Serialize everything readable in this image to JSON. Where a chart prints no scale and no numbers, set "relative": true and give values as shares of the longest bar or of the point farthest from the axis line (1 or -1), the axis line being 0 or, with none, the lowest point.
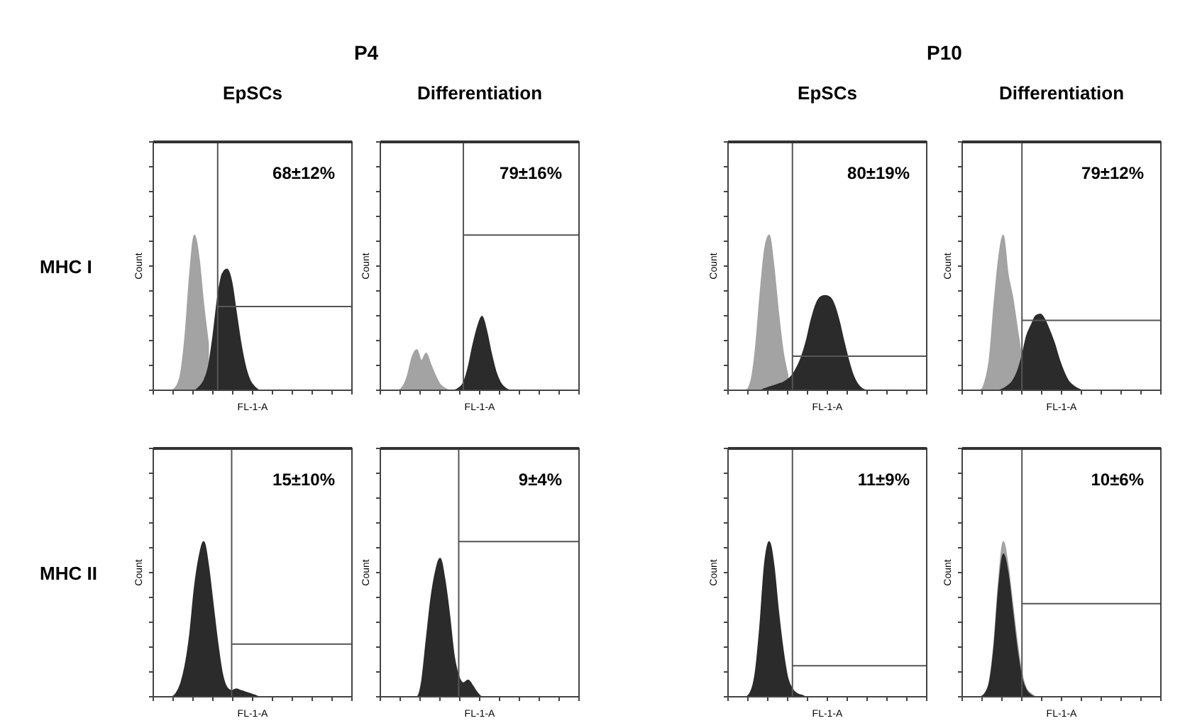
{
  "chart_data": [
    {
      "type": "area",
      "relative": true,
      "title": "EpSCs",
      "subtitle": "P4",
      "xlabel": "FL-1-A",
      "ylabel": "Count",
      "annotations": [
        "68±12%",
        "MHC I"
      ],
      "ref_lines": [
        {
          "axis": "y",
          "value": 0.54
        }
      ],
      "categories": [
        null,
        null,
        null,
        null,
        null,
        null,
        null,
        null,
        null,
        null,
        null,
        null,
        null,
        null,
        null,
        null,
        null,
        null,
        null,
        null,
        null,
        null,
        null,
        null,
        null,
        null,
        null,
        null,
        null,
        null,
        null,
        null,
        null,
        null,
        null,
        null,
        null,
        null,
        null,
        null
      ],
      "series": [
        {
          "color": "#a3a3a3",
          "values": [
            0,
            0,
            0,
            0.02,
            0.1,
            0.35,
            0.75,
            1,
            0.85,
            0.55,
            0.3,
            null,
            null,
            null,
            null,
            null,
            null,
            null,
            null,
            null,
            null,
            null,
            null,
            null,
            null,
            null,
            null,
            null,
            null,
            null,
            null,
            null,
            null,
            null,
            null,
            null,
            null,
            null,
            null,
            null
          ]
        },
        {
          "color": "#2b2b2b",
          "values": [
            0,
            0,
            0,
            0,
            0,
            0,
            0,
            0,
            0.02,
            0.06,
            0.15,
            0.35,
            0.6,
            0.75,
            0.78,
            0.7,
            0.5,
            0.3,
            0.15,
            0.06,
            0.02,
            0,
            0,
            0,
            0,
            0,
            0,
            0,
            0,
            0,
            0,
            0,
            0,
            0,
            0,
            0,
            0,
            0,
            0,
            0
          ]
        }
      ]
    },
    {
      "type": "area",
      "relative": true,
      "title": "Differentiation",
      "xlabel": "FL-1-A",
      "ylabel": "Count",
      "annotations": [
        "79±16%"
      ],
      "ref_lines": [
        {
          "axis": "y",
          "value": 2.1
        }
      ],
      "categories": [
        null,
        null,
        null,
        null,
        null,
        null,
        null,
        null,
        null,
        null,
        null,
        null,
        null,
        null,
        null,
        null,
        null,
        null,
        null,
        null,
        null,
        null,
        null,
        null,
        null,
        null,
        null,
        null,
        null,
        null,
        null,
        null,
        null,
        null,
        null,
        null,
        null,
        null,
        null,
        null
      ],
      "series": [
        {
          "color": "#a3a3a3",
          "values": [
            0,
            0,
            0,
            0.05,
            0.2,
            0.45,
            0.55,
            0.4,
            0.5,
            0.35,
            0.2,
            0.08,
            0.03,
            0,
            0,
            0,
            0,
            0,
            0,
            0,
            0,
            0,
            0,
            0,
            0,
            0,
            0,
            0,
            0,
            0,
            0,
            0,
            0,
            0,
            0,
            0,
            0,
            0,
            0,
            0
          ]
        },
        {
          "color": "#2b2b2b",
          "values": [
            0,
            0,
            0,
            0,
            0,
            0,
            0,
            0,
            0,
            0,
            0,
            0,
            0,
            0,
            0,
            0.03,
            0.1,
            0.3,
            0.6,
            0.85,
            1,
            0.8,
            0.5,
            0.25,
            0.1,
            0.03,
            0,
            0,
            0,
            0,
            0,
            0,
            0,
            0,
            0,
            0,
            0,
            0,
            0,
            0
          ]
        }
      ]
    },
    {
      "type": "area",
      "relative": true,
      "title": "EpSCs",
      "subtitle": "P10",
      "xlabel": "FL-1-A",
      "ylabel": "Count",
      "annotations": [
        "80±19%"
      ],
      "ref_lines": [
        {
          "axis": "y",
          "value": 0.22
        }
      ],
      "categories": [
        null,
        null,
        null,
        null,
        null,
        null,
        null,
        null,
        null,
        null,
        null,
        null,
        null,
        null,
        null,
        null,
        null,
        null,
        null,
        null,
        null,
        null,
        null,
        null,
        null,
        null,
        null,
        null,
        null,
        null,
        null,
        null,
        null,
        null,
        null,
        null,
        null,
        null,
        null,
        null
      ],
      "series": [
        {
          "color": "#a3a3a3",
          "values": [
            0,
            0,
            0,
            0.05,
            0.25,
            0.6,
            0.9,
            1,
            0.8,
            0.5,
            0.25,
            0.1,
            null,
            null,
            null,
            null,
            null,
            null,
            null,
            null,
            null,
            null,
            null,
            null,
            null,
            null,
            null,
            null,
            null,
            null,
            null,
            null,
            null,
            null,
            null,
            null,
            null,
            null,
            null,
            null
          ]
        },
        {
          "color": "#2b2b2b",
          "values": [
            0,
            0,
            0,
            0,
            0,
            0,
            0.01,
            0.02,
            0.03,
            0.04,
            0.05,
            0.07,
            0.1,
            0.15,
            0.22,
            0.32,
            0.45,
            0.55,
            0.6,
            0.61,
            0.6,
            0.55,
            0.45,
            0.32,
            0.2,
            0.1,
            0.04,
            0.01,
            0,
            0,
            0,
            0,
            0,
            0,
            0,
            0,
            0,
            0,
            0,
            0
          ]
        }
      ]
    },
    {
      "type": "area",
      "relative": true,
      "title": "Differentiation",
      "xlabel": "FL-1-A",
      "ylabel": "Count",
      "annotations": [
        "79±12%"
      ],
      "ref_lines": [
        {
          "axis": "y",
          "value": 0.45
        }
      ],
      "categories": [
        null,
        null,
        null,
        null,
        null,
        null,
        null,
        null,
        null,
        null,
        null,
        null,
        null,
        null,
        null,
        null,
        null,
        null,
        null,
        null,
        null,
        null,
        null,
        null,
        null,
        null,
        null,
        null,
        null,
        null,
        null,
        null,
        null,
        null,
        null,
        null,
        null,
        null,
        null,
        null
      ],
      "series": [
        {
          "color": "#a3a3a3",
          "values": [
            0,
            0,
            0,
            0.05,
            0.2,
            0.55,
            0.85,
            1,
            0.75,
            0.6,
            0.4,
            0.2,
            null,
            null,
            null,
            null,
            null,
            null,
            null,
            null,
            null,
            null,
            null,
            null,
            null,
            null,
            null,
            null,
            null,
            null,
            null,
            null,
            null,
            null,
            null,
            null,
            null,
            null,
            null,
            null
          ]
        },
        {
          "color": "#2b2b2b",
          "values": [
            0,
            0,
            0,
            0,
            0,
            0,
            0,
            0.01,
            0.03,
            0.06,
            0.12,
            0.22,
            0.35,
            0.42,
            0.48,
            0.49,
            0.45,
            0.38,
            0.3,
            0.2,
            0.12,
            0.06,
            0.03,
            0.01,
            0,
            0,
            0,
            0,
            0,
            0,
            0,
            0,
            0,
            0,
            0,
            0,
            0,
            0,
            0,
            0
          ]
        }
      ]
    },
    {
      "type": "area",
      "relative": true,
      "xlabel": "FL-1-A",
      "ylabel": "Count",
      "annotations": [
        "15±10%",
        "MHC II"
      ],
      "ref_lines": [
        {
          "axis": "y",
          "value": 0.34
        }
      ],
      "categories": [
        null,
        null,
        null,
        null,
        null,
        null,
        null,
        null,
        null,
        null,
        null,
        null,
        null,
        null,
        null,
        null,
        null,
        null,
        null,
        null,
        null,
        null,
        null,
        null,
        null,
        null,
        null,
        null,
        null,
        null,
        null,
        null,
        null,
        null,
        null,
        null,
        null,
        null,
        null,
        null
      ],
      "series": [
        {
          "color": "#2b2b2b",
          "values": [
            0,
            0,
            0,
            0.02,
            0.08,
            0.2,
            0.4,
            0.7,
            0.9,
            1,
            0.85,
            0.6,
            0.35,
            0.15,
            0.06,
            0.04,
            0.05,
            0.04,
            0.03,
            0.02,
            0.01,
            0,
            0,
            0,
            0,
            0,
            0,
            0,
            0,
            0,
            0,
            0,
            0,
            0,
            0,
            0,
            0,
            0,
            0,
            0
          ]
        }
      ]
    },
    {
      "type": "area",
      "relative": true,
      "xlabel": "FL-1-A",
      "ylabel": "Count",
      "annotations": [
        "9±4%"
      ],
      "ref_lines": [
        {
          "axis": "y",
          "value": 1.12
        }
      ],
      "categories": [
        null,
        null,
        null,
        null,
        null,
        null,
        null,
        null,
        null,
        null,
        null,
        null,
        null,
        null,
        null,
        null,
        null,
        null,
        null,
        null,
        null,
        null,
        null,
        null,
        null,
        null,
        null,
        null,
        null,
        null,
        null,
        null,
        null,
        null,
        null,
        null,
        null,
        null,
        null,
        null
      ],
      "series": [
        {
          "color": "#2b2b2b",
          "values": [
            0,
            0,
            0,
            0,
            0,
            0,
            0,
            0.1,
            0.4,
            0.7,
            0.9,
            1,
            0.85,
            0.6,
            0.3,
            0.15,
            0.1,
            0.12,
            0.08,
            0.03,
            0,
            0,
            0,
            0,
            0,
            0,
            0,
            0,
            0,
            0,
            0,
            0,
            0,
            0,
            0,
            0,
            0,
            0,
            0,
            0
          ]
        }
      ]
    },
    {
      "type": "area",
      "relative": true,
      "xlabel": "FL-1-A",
      "ylabel": "Count",
      "annotations": [
        "11±9%"
      ],
      "ref_lines": [
        {
          "axis": "y",
          "value": 0.2
        }
      ],
      "categories": [
        null,
        null,
        null,
        null,
        null,
        null,
        null,
        null,
        null,
        null,
        null,
        null,
        null,
        null,
        null,
        null,
        null,
        null,
        null,
        null,
        null,
        null,
        null,
        null,
        null,
        null,
        null,
        null,
        null,
        null,
        null,
        null,
        null,
        null,
        null,
        null,
        null,
        null,
        null,
        null
      ],
      "series": [
        {
          "color": "#2b2b2b",
          "values": [
            0,
            0,
            0,
            0.03,
            0.15,
            0.45,
            0.85,
            1,
            0.85,
            0.55,
            0.3,
            0.12,
            0.05,
            0.02,
            0.01,
            0,
            0,
            0,
            0,
            0,
            0,
            0,
            0,
            0,
            0,
            0,
            0,
            0,
            0,
            0,
            0,
            0,
            0,
            0,
            0,
            0,
            0,
            0,
            0,
            0
          ]
        }
      ]
    },
    {
      "type": "area",
      "relative": true,
      "xlabel": "FL-1-A",
      "ylabel": "Count",
      "annotations": [
        "10±6%"
      ],
      "ref_lines": [
        {
          "axis": "y",
          "value": 0.6
        }
      ],
      "categories": [
        null,
        null,
        null,
        null,
        null,
        null,
        null,
        null,
        null,
        null,
        null,
        null,
        null,
        null,
        null,
        null,
        null,
        null,
        null,
        null,
        null,
        null,
        null,
        null,
        null,
        null,
        null,
        null,
        null,
        null,
        null,
        null,
        null,
        null,
        null,
        null,
        null,
        null,
        null,
        null
      ],
      "series": [
        {
          "color": "#a3a3a3",
          "values": [
            0,
            0,
            0,
            0.02,
            0.1,
            0.35,
            0.75,
            1,
            0.85,
            0.6,
            0.35,
            0.15,
            0.05,
            0.02,
            0,
            0,
            0,
            0,
            0,
            0,
            0,
            0,
            0,
            0,
            0,
            0,
            0,
            0,
            0,
            0,
            0,
            0,
            0,
            0,
            0,
            0,
            0,
            0,
            0,
            0
          ]
        },
        {
          "color": "#2b2b2b",
          "values": [
            0,
            0,
            0,
            0.02,
            0.09,
            0.32,
            0.7,
            0.92,
            0.8,
            0.55,
            0.3,
            0.12,
            0.04,
            0.01,
            0,
            0,
            0,
            0,
            0,
            0,
            0,
            0,
            0,
            0,
            0,
            0,
            0,
            0,
            0,
            0,
            0,
            0,
            0,
            0,
            0,
            0,
            0,
            0,
            0,
            0
          ]
        }
      ]
    }
  ]
}
